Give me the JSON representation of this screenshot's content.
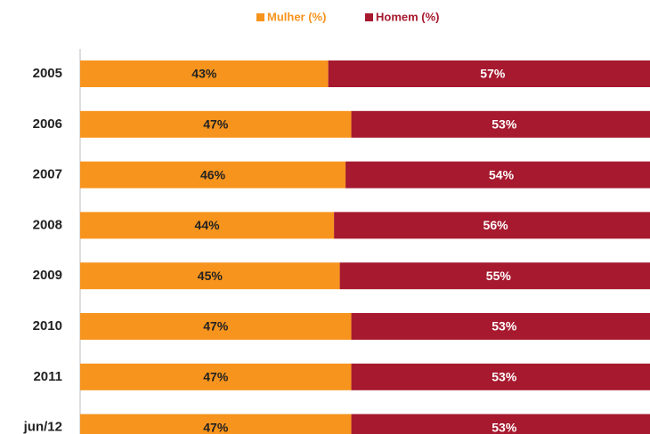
{
  "chart_data": {
    "type": "stacked-bar-horizontal",
    "categories": [
      "2005",
      "2006",
      "2007",
      "2008",
      "2009",
      "2010",
      "2011",
      "jun/12"
    ],
    "series": [
      {
        "name": "Mulher (%)",
        "color": "#f7941d",
        "values": [
          43,
          47,
          46,
          44,
          45,
          47,
          47,
          47
        ],
        "value_labels": [
          "43%",
          "47%",
          "46%",
          "44%",
          "45%",
          "47%",
          "47%",
          "47%"
        ]
      },
      {
        "name": "Homem (%)",
        "color": "#a6192e",
        "values": [
          57,
          53,
          54,
          56,
          55,
          53,
          53,
          53
        ],
        "value_labels": [
          "57%",
          "53%",
          "54%",
          "56%",
          "55%",
          "53%",
          "53%",
          "53%"
        ]
      }
    ],
    "legend": "top"
  }
}
